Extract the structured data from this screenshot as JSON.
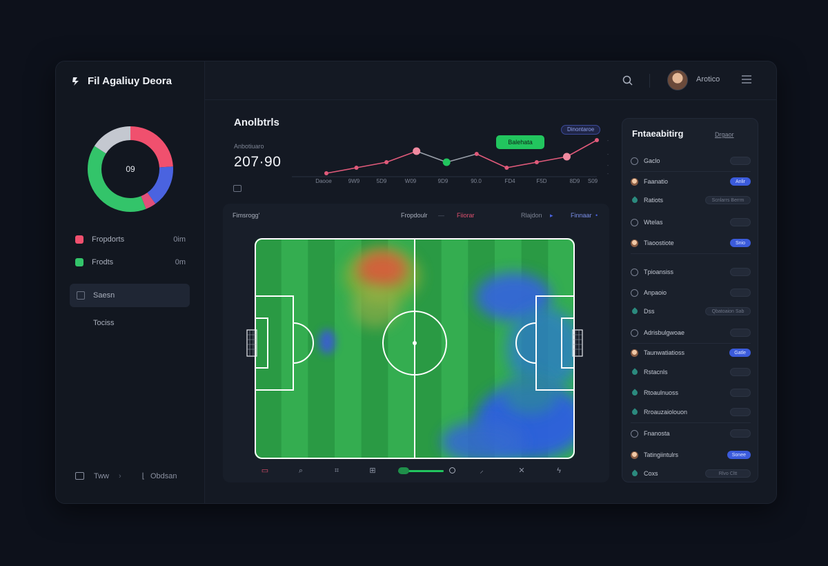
{
  "app": {
    "title": "Fil Agaliuy Deora"
  },
  "header": {
    "user_name": "Arotico"
  },
  "sidebar": {
    "donut": {
      "center_label": "09",
      "segments": [
        {
          "name": "pink",
          "color": "#f0506e",
          "value": 0.24
        },
        {
          "name": "blue",
          "color": "#4a63e0",
          "value": 0.16
        },
        {
          "name": "pink-small",
          "color": "#e0507a",
          "value": 0.04
        },
        {
          "name": "green",
          "color": "#33c46a",
          "value": 0.4
        },
        {
          "name": "gray",
          "color": "#c4c8d0",
          "value": 0.16
        }
      ]
    },
    "legend": [
      {
        "label": "Fropdorts",
        "value": "0im",
        "color": "#f0506e"
      },
      {
        "label": "Frodts",
        "value": "0m",
        "color": "#33c46a"
      }
    ],
    "nav": [
      {
        "label": "Saesn",
        "active": true
      },
      {
        "label": "Tociss",
        "active": false
      }
    ],
    "footer": {
      "left": "Tww",
      "right": "Obdsan"
    }
  },
  "analytics": {
    "title": "Anolbtrls",
    "metric_label": "Anbotiuaro",
    "metric_value": "207·90",
    "badge": "Dinontaroe",
    "tag": "Balehata",
    "x_labels": [
      "Daooe",
      "9W9",
      "5D9",
      "W09",
      "9D9",
      "90.0",
      "FD4",
      "F5D",
      "8D9",
      "S09"
    ],
    "chart_data": {
      "type": "line",
      "x": [
        "Daooe",
        "9W9",
        "5D9",
        "W09",
        "9D9",
        "90.0",
        "FD4",
        "F5D",
        "8D9",
        "S09"
      ],
      "series": [
        {
          "color": "#e05a7a",
          "values": [
            0,
            1,
            2,
            4,
            2,
            3.5,
            1,
            2,
            3,
            6
          ]
        }
      ],
      "highlight_colors": [
        "#f08aa0",
        "#22c55e",
        "#f08aa0"
      ]
    }
  },
  "pitch_card": {
    "title": "Fimsrogg'",
    "filter_a": "Fropdoulr",
    "filter_b": "Fiiorar",
    "filter_c": "Rlajdon",
    "filter_d": "Finnaar",
    "colors": {
      "grass_dark": "#2a9a44",
      "grass_light": "#34ad50",
      "heat_hot": "#d9603a",
      "heat_cold": "#2f5fe0"
    }
  },
  "right_panel": {
    "title": "Fntaeabitirg",
    "link": "Drgaor",
    "rows": [
      {
        "label": "Gaclo",
        "icon": "shield",
        "badge": "",
        "on": false
      },
      {
        "label": "Faanatio",
        "icon": "avatar",
        "badge": "Anlir",
        "on": true
      },
      {
        "label": "Ratiots",
        "icon": "marker",
        "badge": "Scnlarrs Berrm",
        "on": false
      },
      {
        "label": "Wtelas",
        "icon": "shield",
        "badge": "",
        "on": false
      },
      {
        "label": "Tiaoostiote",
        "icon": "avatar",
        "badge": "Snio",
        "on": true
      },
      {
        "label": "Tpioansiss",
        "icon": "shield",
        "badge": "",
        "on": false
      },
      {
        "label": "Anpaoio",
        "icon": "shield",
        "badge": "",
        "on": false
      },
      {
        "label": "Dss",
        "icon": "marker",
        "badge": "Qbatoaion Sab",
        "on": false
      },
      {
        "label": "Adrisbulgwoae",
        "icon": "shield",
        "badge": "",
        "on": false
      },
      {
        "label": "Taunwatiatioss",
        "icon": "avatar",
        "badge": "Gatle",
        "on": true
      },
      {
        "label": "Rstacnls",
        "icon": "marker",
        "badge": "",
        "on": false
      },
      {
        "label": "Rtoaulnuoss",
        "icon": "marker",
        "badge": "",
        "on": false
      },
      {
        "label": "Rroauzaiolouon",
        "icon": "marker",
        "badge": "",
        "on": false
      },
      {
        "label": "Fnanosta",
        "icon": "shield",
        "badge": "",
        "on": false
      },
      {
        "label": "Tatingiintulrs",
        "icon": "avatar",
        "badge": "Sonee",
        "on": true
      },
      {
        "label": "Coxs",
        "icon": "marker",
        "badge": "Rlvo Cltt",
        "on": false
      }
    ]
  }
}
